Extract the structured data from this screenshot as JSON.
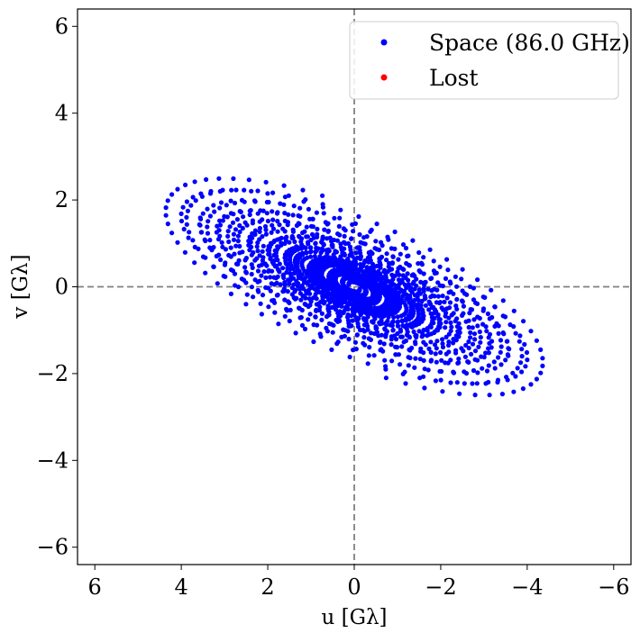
{
  "chart_data": {
    "type": "scatter",
    "title": "",
    "xlabel": "u [Gλ]",
    "ylabel": "v [Gλ]",
    "xlim": [
      6.4,
      -6.4
    ],
    "ylim": [
      -6.4,
      6.4
    ],
    "x_ticks": [
      6,
      4,
      2,
      0,
      -2,
      -4,
      -6
    ],
    "y_ticks": [
      6,
      4,
      2,
      0,
      -2,
      -4,
      -6
    ],
    "tick_labels_x": [
      "6",
      "4",
      "2",
      "0",
      "−2",
      "−4",
      "−6"
    ],
    "tick_labels_y": [
      "6",
      "4",
      "2",
      "0",
      "−2",
      "−4",
      "−6"
    ],
    "zero_lines": true,
    "grid": false,
    "legend_position": "top-right",
    "series": [
      {
        "name": "Space (86.0 GHz)",
        "color": "#0000ff",
        "spirals": [
          {
            "a": 4.95,
            "b": 1.7,
            "theta": 0.42,
            "turns": 4.2,
            "points": 260
          },
          {
            "a": 4.55,
            "b": 1.45,
            "theta": 0.42,
            "turns": 4.2,
            "points": 240
          },
          {
            "a": 3.9,
            "b": 1.2,
            "theta": 0.42,
            "turns": 4.0,
            "points": 200
          },
          {
            "a": 2.3,
            "b": 0.95,
            "theta": 0.42,
            "turns": 3.5,
            "points": 170
          },
          {
            "a": 1.15,
            "b": 0.55,
            "theta": 0.42,
            "turns": 3.0,
            "points": 120
          }
        ]
      },
      {
        "name": "Lost",
        "color": "#ff0000",
        "spirals": []
      }
    ]
  }
}
